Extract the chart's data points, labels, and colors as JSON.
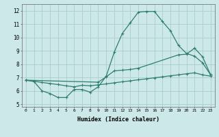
{
  "line1_x": [
    0,
    1,
    2,
    3,
    4,
    5,
    6,
    7,
    8,
    9,
    10,
    11,
    12,
    13,
    14,
    15,
    16,
    17,
    18,
    19,
    20,
    21,
    22,
    23
  ],
  "line1_y": [
    6.8,
    6.7,
    6.0,
    5.8,
    5.5,
    5.5,
    6.1,
    6.1,
    5.9,
    6.3,
    7.1,
    8.9,
    10.3,
    11.1,
    11.9,
    11.95,
    11.95,
    11.2,
    10.5,
    9.4,
    8.8,
    8.6,
    8.1,
    7.2
  ],
  "line2_x": [
    0,
    9,
    10,
    11,
    12,
    13,
    14,
    19,
    20,
    21,
    22,
    23
  ],
  "line2_y": [
    6.8,
    6.65,
    7.05,
    7.5,
    7.55,
    7.6,
    7.7,
    8.7,
    8.75,
    9.2,
    8.55,
    7.2
  ],
  "line3_x": [
    0,
    1,
    2,
    3,
    4,
    5,
    6,
    7,
    8,
    9,
    10,
    11,
    12,
    13,
    14,
    15,
    16,
    17,
    18,
    19,
    20,
    21,
    22,
    23
  ],
  "line3_y": [
    6.8,
    6.72,
    6.63,
    6.55,
    6.47,
    6.38,
    6.3,
    6.42,
    6.38,
    6.45,
    6.52,
    6.6,
    6.68,
    6.75,
    6.83,
    6.9,
    6.98,
    7.05,
    7.13,
    7.2,
    7.28,
    7.35,
    7.2,
    7.1
  ],
  "color": "#2e7d6e",
  "bg_color": "#cce8e8",
  "grid_color": "#aacccc",
  "xlabel": "Humidex (Indice chaleur)",
  "xlim": [
    -0.5,
    23.5
  ],
  "ylim": [
    4.8,
    12.5
  ],
  "yticks": [
    5,
    6,
    7,
    8,
    9,
    10,
    11,
    12
  ],
  "xticks": [
    0,
    1,
    2,
    3,
    4,
    5,
    6,
    7,
    8,
    9,
    10,
    11,
    12,
    13,
    14,
    15,
    16,
    17,
    18,
    19,
    20,
    21,
    22,
    23
  ]
}
